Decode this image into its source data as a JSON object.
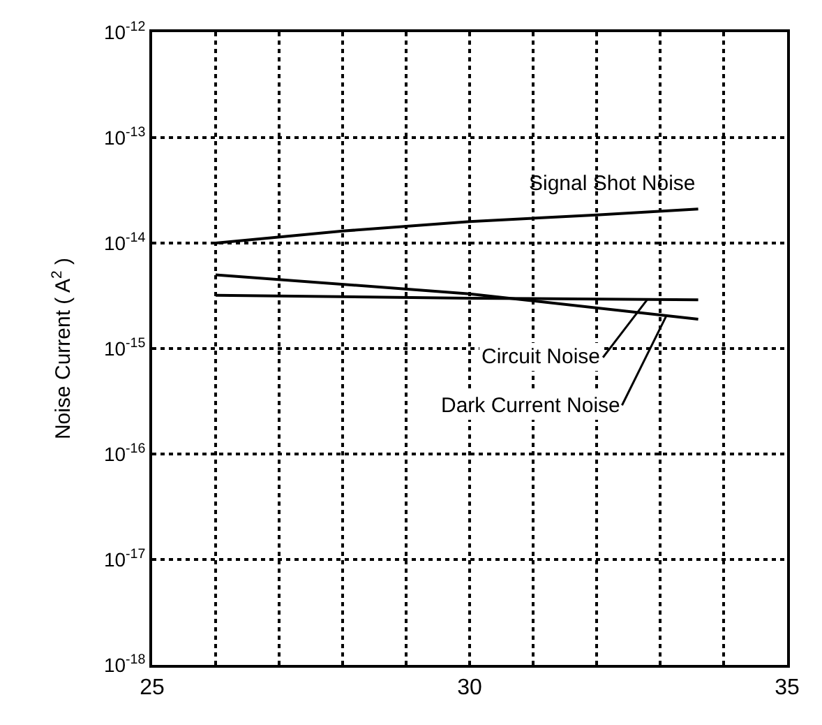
{
  "chart_data": {
    "type": "line",
    "ylabel": "Noise Current ( A$^{2}$ )",
    "series": [
      {
        "name": "Signal Shot Noise",
        "color": "#000000",
        "x": [
          26,
          28,
          30,
          32,
          33.6
        ],
        "values": [
          1e-14,
          1.3e-14,
          1.6e-14,
          1.85e-14,
          2.1e-14
        ]
      },
      {
        "name": "Circuit Noise",
        "color": "#000000",
        "x": [
          26,
          30,
          33.6
        ],
        "values": [
          3.2e-15,
          3e-15,
          2.9e-15
        ]
      },
      {
        "name": "Dark Current Noise",
        "color": "#000000",
        "x": [
          26,
          30,
          33.6
        ],
        "values": [
          5e-15,
          3.3e-15,
          1.9e-15
        ]
      }
    ],
    "xlim": [
      25,
      35
    ],
    "xticks": [
      25,
      {
        "value": 26,
        "label": null
      },
      {
        "value": 27,
        "label": null
      },
      {
        "value": 28,
        "label": null
      },
      {
        "value": 29,
        "label": null
      },
      30,
      {
        "value": 31,
        "label": null
      },
      {
        "value": 32,
        "label": null
      },
      {
        "value": 33,
        "label": null
      },
      {
        "value": 34,
        "label": null
      },
      35
    ],
    "ylim": [
      1e-18,
      1e-12
    ],
    "yticks": [
      {
        "value": 1e-18,
        "label": "10$^{-18}$"
      },
      {
        "value": 1e-17,
        "label": "10$^{-17}$"
      },
      {
        "value": 1e-16,
        "label": "10$^{-16}$"
      },
      {
        "value": 1e-15,
        "label": "10$^{-15}$"
      },
      {
        "value": 1e-14,
        "label": "10$^{-14}$"
      },
      {
        "value": 1e-13,
        "label": "10$^{-13}$"
      },
      {
        "value": 1e-12,
        "label": "10$^{-12}$"
      }
    ],
    "log": "y",
    "grid": true,
    "legend": false,
    "marker": "none",
    "line_style": "solid"
  }
}
